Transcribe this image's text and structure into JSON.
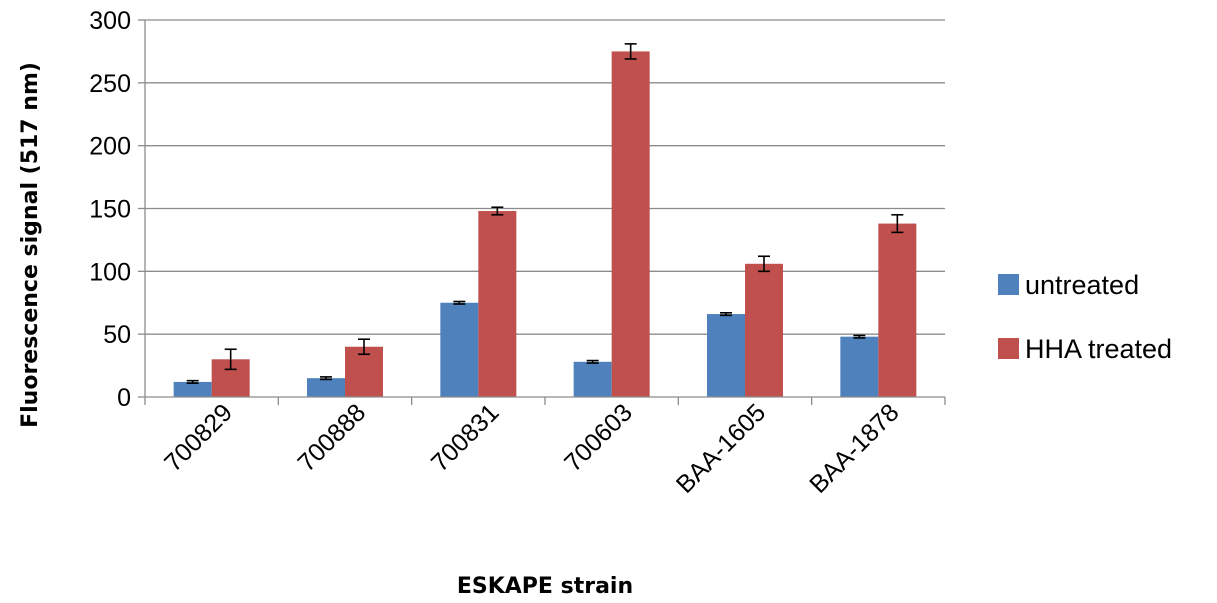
{
  "chart_data": {
    "type": "bar",
    "categories": [
      "700829",
      "700888",
      "700831",
      "700603",
      "BAA-1605",
      "BAA-1878"
    ],
    "series": [
      {
        "name": "untreated",
        "color": "#4F81BD",
        "values": [
          12,
          15,
          75,
          28,
          66,
          48
        ],
        "errors": [
          1,
          1,
          1,
          1,
          1,
          1
        ]
      },
      {
        "name": "HHA treated",
        "color": "#C0504D",
        "values": [
          30,
          40,
          148,
          275,
          106,
          138
        ],
        "errors": [
          8,
          6,
          3,
          6,
          6,
          7
        ]
      }
    ],
    "xlabel": "ESKAPE strain",
    "ylabel": "Fluorescence signal  (517 nm)",
    "ylim": [
      0,
      300
    ],
    "yticks": [
      0,
      50,
      100,
      150,
      200,
      250,
      300
    ],
    "grid": true,
    "legend_position": "right"
  }
}
